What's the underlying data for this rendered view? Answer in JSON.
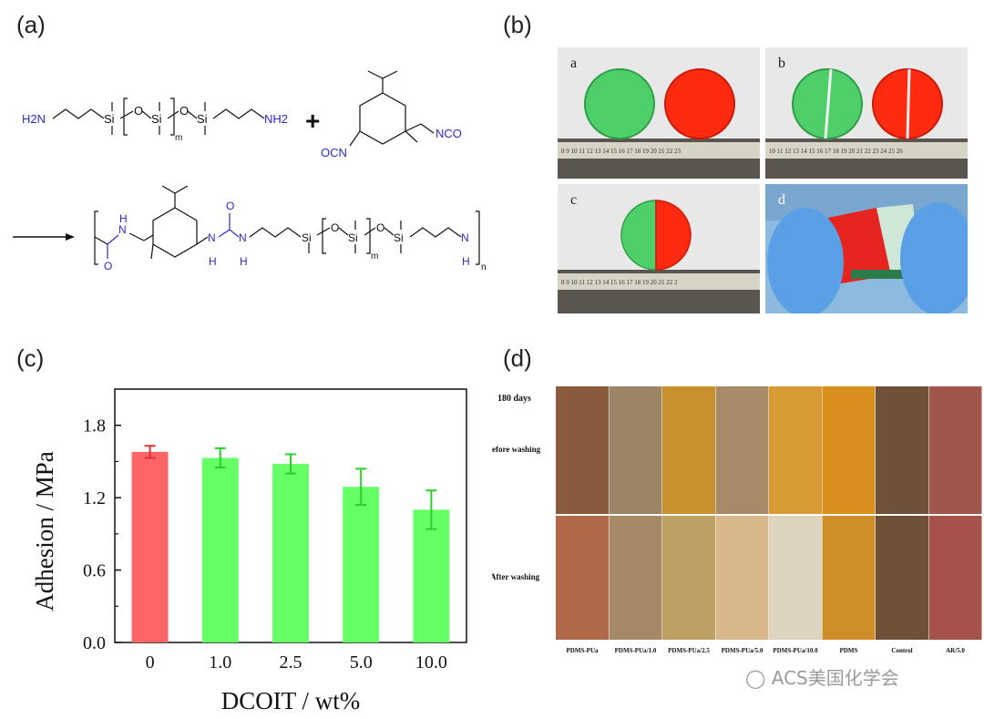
{
  "panels": {
    "a": "(a)",
    "b": "(b)",
    "c": "(c)",
    "d": "(d)"
  },
  "scheme": {
    "reactant1": {
      "left_end": "H2N",
      "si": "Si",
      "o": "O",
      "m": "m",
      "right_end": "NH2"
    },
    "plus": "+",
    "reactant2": {
      "left_group": "OCN",
      "right_group": "NCO"
    },
    "product": {
      "h": "H",
      "n": "N",
      "o": "O",
      "si": "Si",
      "m": "m",
      "n_sub": "n"
    },
    "colors": {
      "blue": "#2a2ad0",
      "black": "#111111"
    }
  },
  "photos": {
    "a": "a",
    "b": "b",
    "c": "c",
    "d": "d",
    "ruler_numbers_a": "8  9  10 11 12 13 14 15 16 17 18 19 20 21 22 23",
    "ruler_numbers_b": "10 11 12 13 14 15 16 17 18 19 20 21 22 23 24 25 26",
    "ruler_numbers_c": "8  9  10 11 12 13 14 15 16 17 18 19 20 21 22 2"
  },
  "chart_data": {
    "type": "bar",
    "categories": [
      "0",
      "1.0",
      "2.5",
      "5.0",
      "10.0"
    ],
    "values": [
      1.58,
      1.53,
      1.48,
      1.29,
      1.1
    ],
    "errors": [
      0.05,
      0.08,
      0.08,
      0.15,
      0.16
    ],
    "colors": [
      "#ff6565",
      "#66ff66",
      "#66ff66",
      "#66ff66",
      "#66ff66"
    ],
    "xlabel": "DCOIT / wt%",
    "ylabel": "Adhesion / MPa",
    "ylim": [
      0.0,
      2.1
    ],
    "yticks": [
      0.0,
      0.6,
      1.2,
      1.8
    ],
    "ytick_labels": [
      "0.0",
      "0.6",
      "1.2",
      "1.8"
    ]
  },
  "panel_d": {
    "period": "180 days",
    "row1": "Before washing",
    "row2": "After washing",
    "samples": [
      "PDMS-PUa",
      "PDMS-PUa/1.0",
      "PDMS-PUa/2.5",
      "PDMS-PUa/5.0",
      "PDMS-PUa/10.0",
      "PDMS",
      "Control",
      "AR/5.0"
    ]
  },
  "watermark": "ACS美国化学会"
}
